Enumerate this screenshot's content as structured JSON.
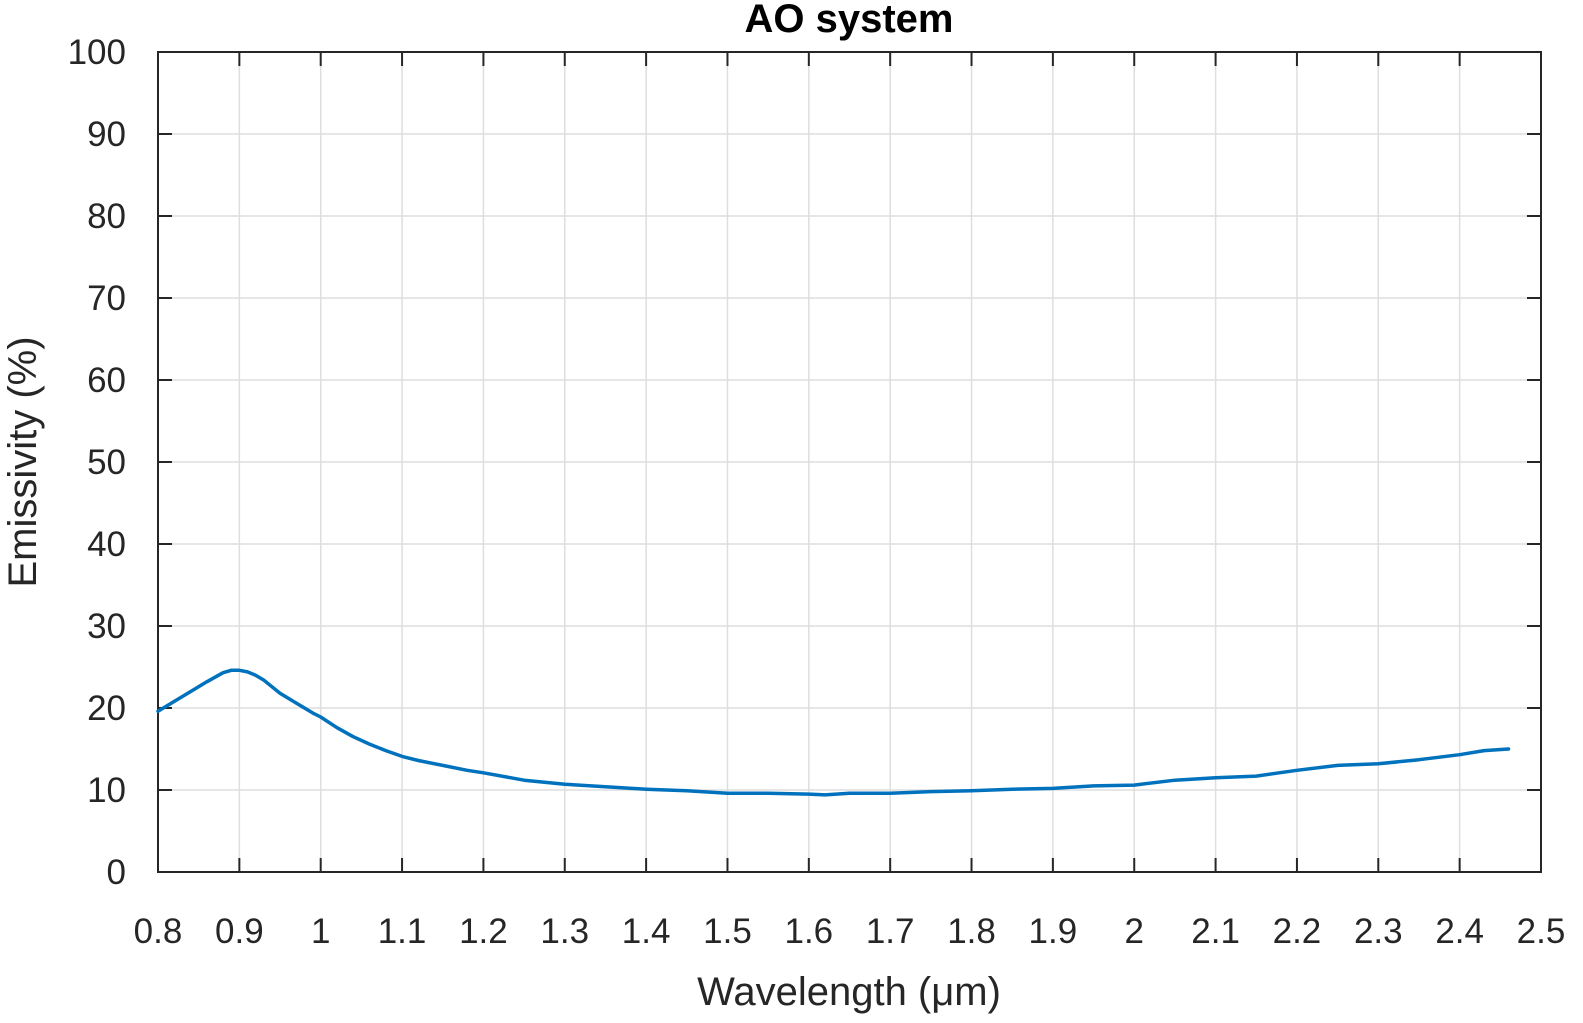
{
  "chart_data": {
    "type": "line",
    "title": "AO system",
    "xlabel": "Wavelength (μm)",
    "ylabel": "Emissivity (%)",
    "xlim": [
      0.8,
      2.5
    ],
    "ylim": [
      0,
      100
    ],
    "x_ticks": [
      0.8,
      0.9,
      1,
      1.1,
      1.2,
      1.3,
      1.4,
      1.5,
      1.6,
      1.7,
      1.8,
      1.9,
      2,
      2.1,
      2.2,
      2.3,
      2.4,
      2.5
    ],
    "x_tick_labels": [
      "0.8",
      "0.9",
      "1",
      "1.1",
      "1.2",
      "1.3",
      "1.4",
      "1.5",
      "1.6",
      "1.7",
      "1.8",
      "1.9",
      "2",
      "2.1",
      "2.2",
      "2.3",
      "2.4",
      "2.5"
    ],
    "y_ticks": [
      0,
      10,
      20,
      30,
      40,
      50,
      60,
      70,
      80,
      90,
      100
    ],
    "y_tick_labels": [
      "0",
      "10",
      "20",
      "30",
      "40",
      "50",
      "60",
      "70",
      "80",
      "90",
      "100"
    ],
    "grid": true,
    "legend": "none",
    "line_color": "#0072BD",
    "series": [
      {
        "x": [
          0.8,
          0.82,
          0.84,
          0.86,
          0.88,
          0.89,
          0.9,
          0.91,
          0.92,
          0.93,
          0.94,
          0.95,
          0.97,
          0.99,
          1.0,
          1.02,
          1.04,
          1.06,
          1.08,
          1.1,
          1.12,
          1.15,
          1.18,
          1.2,
          1.25,
          1.3,
          1.35,
          1.4,
          1.45,
          1.5,
          1.55,
          1.6,
          1.62,
          1.65,
          1.7,
          1.75,
          1.8,
          1.85,
          1.9,
          1.95,
          2.0,
          2.05,
          2.1,
          2.15,
          2.2,
          2.25,
          2.3,
          2.35,
          2.4,
          2.43,
          2.46
        ],
        "y": [
          19.6,
          20.8,
          22.0,
          23.2,
          24.3,
          24.6,
          24.6,
          24.4,
          24.0,
          23.4,
          22.6,
          21.8,
          20.6,
          19.4,
          18.9,
          17.6,
          16.5,
          15.6,
          14.8,
          14.1,
          13.6,
          13.0,
          12.4,
          12.1,
          11.2,
          10.7,
          10.4,
          10.1,
          9.9,
          9.6,
          9.6,
          9.5,
          9.4,
          9.6,
          9.6,
          9.8,
          9.9,
          10.1,
          10.2,
          10.5,
          10.6,
          11.2,
          11.5,
          11.7,
          12.4,
          13.0,
          13.2,
          13.7,
          14.3,
          14.8,
          15.0
        ]
      }
    ]
  }
}
